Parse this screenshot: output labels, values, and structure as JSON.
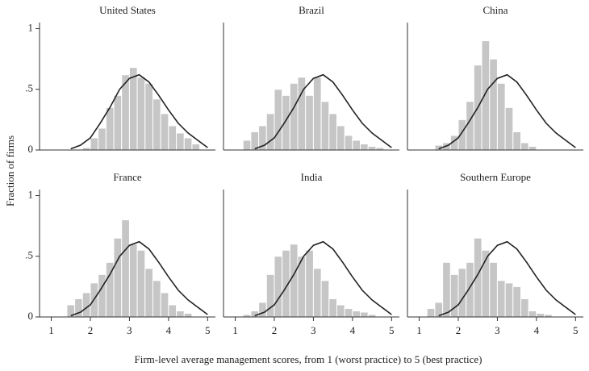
{
  "xlabel": "Firm-level average management scores, from 1 (worst practice) to 5 (best practice)",
  "ylabel": "Fraction of firms",
  "chart_data": [
    {
      "type": "histogram",
      "title": "United States",
      "bins": [
        1.0,
        1.2,
        1.4,
        1.6,
        1.8,
        2.0,
        2.2,
        2.4,
        2.6,
        2.8,
        3.0,
        3.2,
        3.4,
        3.6,
        3.8,
        4.0,
        4.2,
        4.4,
        4.6,
        4.8,
        5.0
      ],
      "values": [
        0,
        0,
        0,
        0,
        0.02,
        0.1,
        0.18,
        0.35,
        0.45,
        0.62,
        0.68,
        0.6,
        0.55,
        0.42,
        0.3,
        0.2,
        0.14,
        0.1,
        0.05,
        0
      ],
      "color": "#c6c6c6",
      "curve": {
        "x": [
          1.5,
          1.75,
          2.0,
          2.25,
          2.5,
          2.75,
          3.0,
          3.25,
          3.5,
          3.75,
          4.0,
          4.25,
          4.5,
          4.75,
          5.0
        ],
        "values": [
          0.01,
          0.04,
          0.1,
          0.22,
          0.35,
          0.5,
          0.59,
          0.62,
          0.56,
          0.45,
          0.33,
          0.22,
          0.14,
          0.08,
          0.02
        ],
        "color": "#222222"
      },
      "xlim": [
        0.7,
        5.2
      ],
      "ylim": [
        0,
        1.05
      ],
      "yticks": [
        0,
        {
          "value": 0.5,
          "label": ".5"
        },
        1
      ]
    },
    {
      "type": "histogram",
      "title": "Brazil",
      "bins": [
        1.0,
        1.2,
        1.4,
        1.6,
        1.8,
        2.0,
        2.2,
        2.4,
        2.6,
        2.8,
        3.0,
        3.2,
        3.4,
        3.6,
        3.8,
        4.0,
        4.2,
        4.4,
        4.6,
        4.8,
        5.0
      ],
      "values": [
        0,
        0.08,
        0.15,
        0.2,
        0.3,
        0.5,
        0.45,
        0.55,
        0.6,
        0.45,
        0.6,
        0.4,
        0.3,
        0.2,
        0.12,
        0.08,
        0.05,
        0.03,
        0.02,
        0
      ],
      "color": "#c6c6c6",
      "curve": {
        "x": [
          1.5,
          1.75,
          2.0,
          2.25,
          2.5,
          2.75,
          3.0,
          3.25,
          3.5,
          3.75,
          4.0,
          4.25,
          4.5,
          4.75,
          5.0
        ],
        "values": [
          0.01,
          0.04,
          0.1,
          0.22,
          0.35,
          0.5,
          0.59,
          0.62,
          0.56,
          0.45,
          0.33,
          0.22,
          0.14,
          0.08,
          0.02
        ],
        "color": "#222222"
      },
      "xlim": [
        0.7,
        5.2
      ],
      "ylim": [
        0,
        1.05
      ]
    },
    {
      "type": "histogram",
      "title": "China",
      "bins": [
        1.0,
        1.2,
        1.4,
        1.6,
        1.8,
        2.0,
        2.2,
        2.4,
        2.6,
        2.8,
        3.0,
        3.2,
        3.4,
        3.6,
        3.8,
        4.0,
        4.2,
        4.4,
        4.6,
        4.8,
        5.0
      ],
      "values": [
        0,
        0,
        0.04,
        0.06,
        0.12,
        0.25,
        0.4,
        0.7,
        0.9,
        0.75,
        0.55,
        0.35,
        0.15,
        0.06,
        0.03,
        0,
        0,
        0,
        0,
        0
      ],
      "color": "#c6c6c6",
      "curve": {
        "x": [
          1.5,
          1.75,
          2.0,
          2.25,
          2.5,
          2.75,
          3.0,
          3.25,
          3.5,
          3.75,
          4.0,
          4.25,
          4.5,
          4.75,
          5.0
        ],
        "values": [
          0.01,
          0.04,
          0.1,
          0.22,
          0.35,
          0.5,
          0.59,
          0.62,
          0.56,
          0.45,
          0.33,
          0.22,
          0.14,
          0.08,
          0.02
        ],
        "color": "#222222"
      },
      "xlim": [
        0.7,
        5.2
      ],
      "ylim": [
        0,
        1.05
      ]
    },
    {
      "type": "histogram",
      "title": "France",
      "bins": [
        1.0,
        1.2,
        1.4,
        1.6,
        1.8,
        2.0,
        2.2,
        2.4,
        2.6,
        2.8,
        3.0,
        3.2,
        3.4,
        3.6,
        3.8,
        4.0,
        4.2,
        4.4,
        4.6,
        4.8,
        5.0
      ],
      "values": [
        0,
        0,
        0.1,
        0.15,
        0.2,
        0.28,
        0.35,
        0.45,
        0.65,
        0.8,
        0.6,
        0.55,
        0.4,
        0.3,
        0.2,
        0.1,
        0.05,
        0.03,
        0,
        0
      ],
      "color": "#c6c6c6",
      "curve": {
        "x": [
          1.5,
          1.75,
          2.0,
          2.25,
          2.5,
          2.75,
          3.0,
          3.25,
          3.5,
          3.75,
          4.0,
          4.25,
          4.5,
          4.75,
          5.0
        ],
        "values": [
          0.01,
          0.04,
          0.1,
          0.22,
          0.35,
          0.5,
          0.59,
          0.62,
          0.56,
          0.45,
          0.33,
          0.22,
          0.14,
          0.08,
          0.02
        ],
        "color": "#222222"
      },
      "xlim": [
        0.7,
        5.2
      ],
      "ylim": [
        0,
        1.05
      ],
      "xticks": [
        1,
        2,
        3,
        4,
        5
      ],
      "yticks": [
        0,
        {
          "value": 0.5,
          "label": ".5"
        },
        1
      ]
    },
    {
      "type": "histogram",
      "title": "India",
      "bins": [
        1.0,
        1.2,
        1.4,
        1.6,
        1.8,
        2.0,
        2.2,
        2.4,
        2.6,
        2.8,
        3.0,
        3.2,
        3.4,
        3.6,
        3.8,
        4.0,
        4.2,
        4.4,
        4.6,
        4.8,
        5.0
      ],
      "values": [
        0,
        0.02,
        0.05,
        0.12,
        0.35,
        0.5,
        0.55,
        0.6,
        0.5,
        0.55,
        0.4,
        0.3,
        0.15,
        0.1,
        0.07,
        0.05,
        0.04,
        0.02,
        0,
        0
      ],
      "color": "#c6c6c6",
      "curve": {
        "x": [
          1.5,
          1.75,
          2.0,
          2.25,
          2.5,
          2.75,
          3.0,
          3.25,
          3.5,
          3.75,
          4.0,
          4.25,
          4.5,
          4.75,
          5.0
        ],
        "values": [
          0.01,
          0.04,
          0.1,
          0.22,
          0.35,
          0.5,
          0.59,
          0.62,
          0.56,
          0.45,
          0.33,
          0.22,
          0.14,
          0.08,
          0.02
        ],
        "color": "#222222"
      },
      "xlim": [
        0.7,
        5.2
      ],
      "ylim": [
        0,
        1.05
      ],
      "xticks": [
        1,
        2,
        3,
        4,
        5
      ]
    },
    {
      "type": "histogram",
      "title": "Southern Europe",
      "bins": [
        1.0,
        1.2,
        1.4,
        1.6,
        1.8,
        2.0,
        2.2,
        2.4,
        2.6,
        2.8,
        3.0,
        3.2,
        3.4,
        3.6,
        3.8,
        4.0,
        4.2,
        4.4,
        4.6,
        4.8,
        5.0
      ],
      "values": [
        0,
        0.07,
        0.12,
        0.45,
        0.35,
        0.4,
        0.45,
        0.65,
        0.55,
        0.45,
        0.3,
        0.28,
        0.25,
        0.15,
        0.05,
        0.03,
        0.02,
        0,
        0,
        0
      ],
      "color": "#c6c6c6",
      "curve": {
        "x": [
          1.5,
          1.75,
          2.0,
          2.25,
          2.5,
          2.75,
          3.0,
          3.25,
          3.5,
          3.75,
          4.0,
          4.25,
          4.5,
          4.75,
          5.0
        ],
        "values": [
          0.01,
          0.04,
          0.1,
          0.22,
          0.35,
          0.5,
          0.59,
          0.62,
          0.56,
          0.45,
          0.33,
          0.22,
          0.14,
          0.08,
          0.02
        ],
        "color": "#222222"
      },
      "xlim": [
        0.7,
        5.2
      ],
      "ylim": [
        0,
        1.05
      ],
      "xticks": [
        1,
        2,
        3,
        4,
        5
      ]
    }
  ]
}
